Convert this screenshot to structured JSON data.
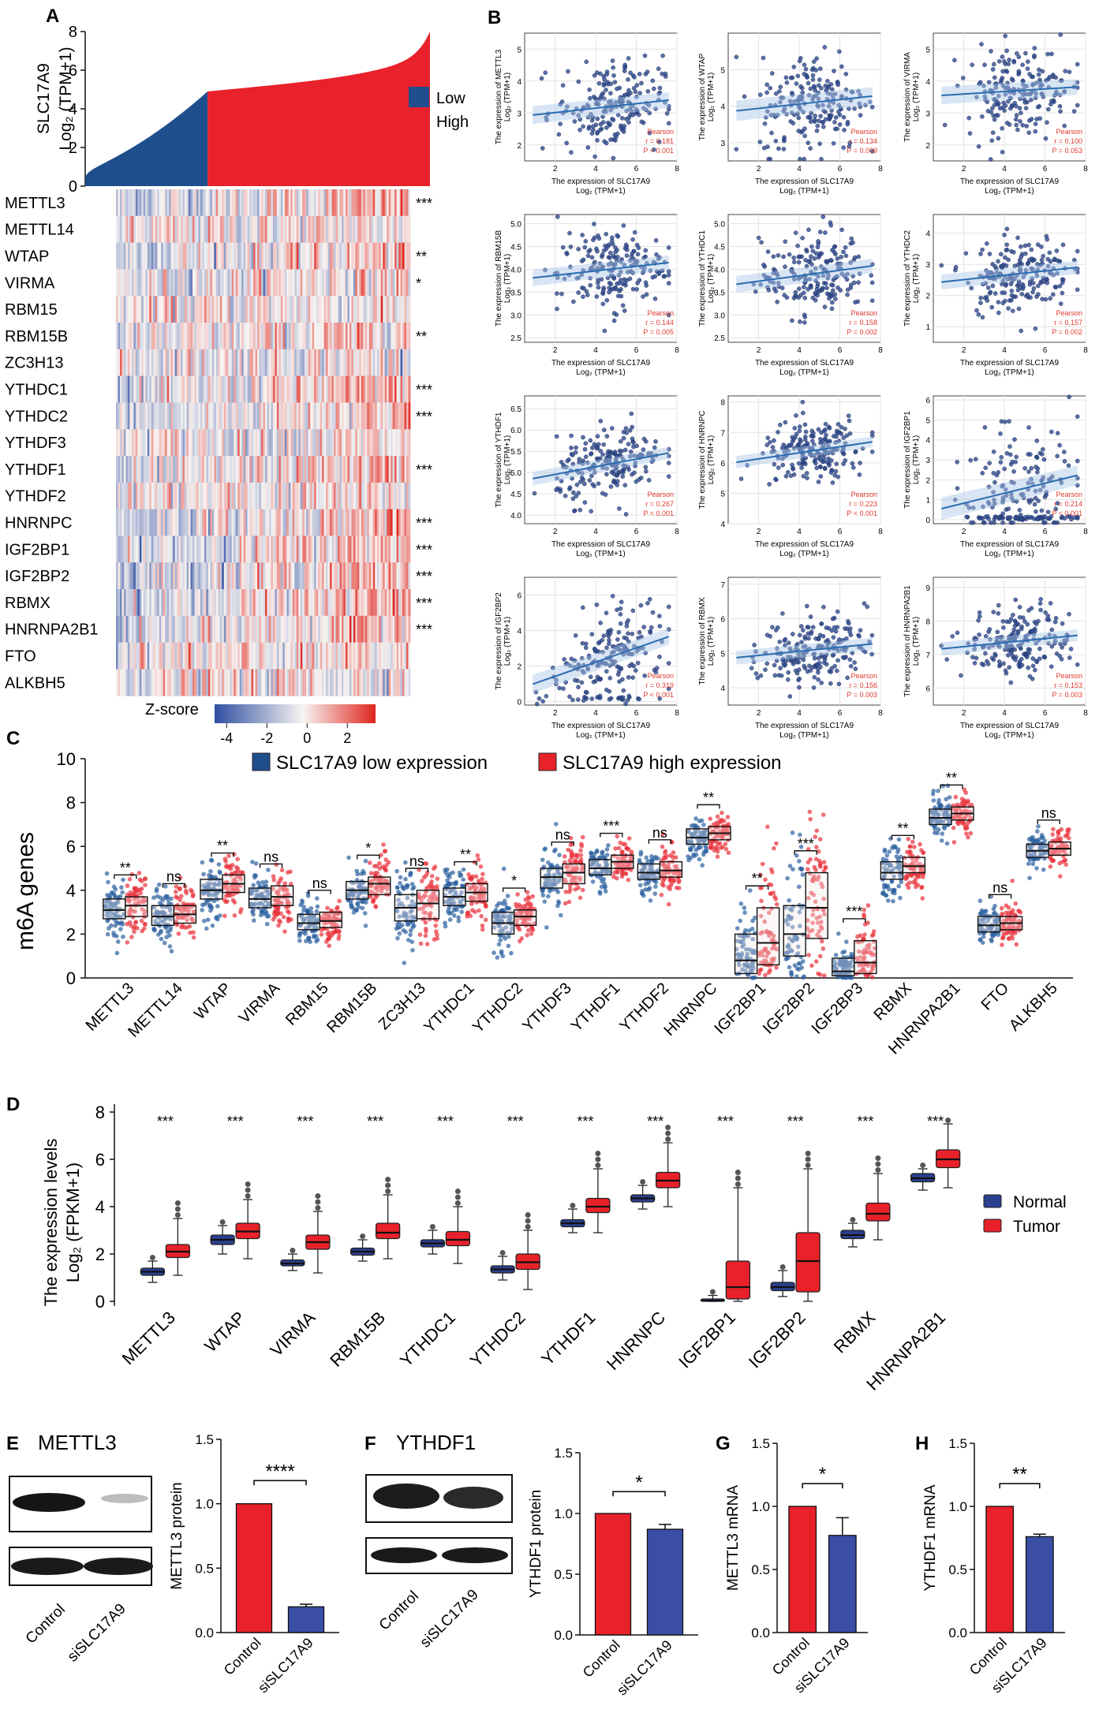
{
  "colors": {
    "low": "#1f4e8c",
    "high": "#e8212a",
    "normal": "#2b3f8f",
    "tumor": "#e8212a",
    "heat_neg": "#2f4fa2",
    "heat_mid": "#f7f4f2",
    "heat_pos": "#e0251d",
    "scatter_point": "#2f4a8f",
    "trend": "#2a6cb0",
    "band": "#a9c6e6",
    "grid": "#e3e3e3",
    "pearson_text": "#e03a2f",
    "bar_ctrl": "#e8212a",
    "bar_si": "#3a4ea6"
  },
  "panels": {
    "A": {
      "label": "A",
      "ylabel_line1": "SLC17A9",
      "ylabel_line2": "Log₂ (TPM+1)",
      "yticks": [
        "0",
        "2",
        "4",
        "6",
        "8"
      ],
      "legend": [
        {
          "name": "Low",
          "color": "#1f4e8c"
        },
        {
          "name": "High",
          "color": "#e8212a"
        }
      ],
      "genes": [
        "METTL3",
        "METTL14",
        "WTAP",
        "VIRMA",
        "RBM15",
        "RBM15B",
        "ZC3H13",
        "YTHDC1",
        "YTHDC2",
        "YTHDF3",
        "YTHDF1",
        "YTHDF2",
        "HNRNPC",
        "IGF2BP1",
        "IGF2BP2",
        "RBMX",
        "HNRNPA2B1",
        "FTO",
        "ALKBH5"
      ],
      "stars": [
        "***",
        "",
        "**",
        "*",
        "",
        "**",
        "",
        "***",
        "***",
        "",
        "***",
        "",
        "***",
        "***",
        "***",
        "***",
        "***",
        "",
        ""
      ],
      "zscore_label": "Z-score",
      "zscore_ticks": [
        "-4",
        "-2",
        "0",
        "2"
      ]
    },
    "B": {
      "label": "B",
      "xlabel_line1": "The expression of SLC17A9",
      "xlabel_line2": "Log₂ (TPM+1)",
      "xticks": [
        "2",
        "4",
        "6",
        "8"
      ],
      "pearson_word": "Pearson",
      "plots": [
        {
          "gene": "METTL3",
          "r": "r = 0.181",
          "p": "P < 0.001",
          "yticks": [
            "2",
            "3",
            "4",
            "5"
          ]
        },
        {
          "gene": "WTAP",
          "r": "r = 0.134",
          "p": "P = 0.009",
          "yticks": [
            "3",
            "4",
            "5"
          ]
        },
        {
          "gene": "VIRMA",
          "r": "r = 0.100",
          "p": "P = 0.053",
          "yticks": [
            "2",
            "3",
            "4",
            "5"
          ]
        },
        {
          "gene": "RBM15B",
          "r": "r = 0.144",
          "p": "P = 0.005",
          "yticks": [
            "2.5",
            "3.0",
            "3.5",
            "4.0",
            "4.5",
            "5.0"
          ]
        },
        {
          "gene": "YTHDC1",
          "r": "r = 0.158",
          "p": "P = 0.002",
          "yticks": [
            "2.5",
            "3.0",
            "3.5",
            "4.0",
            "4.5",
            "5.0"
          ]
        },
        {
          "gene": "YTHDC2",
          "r": "r = 0.157",
          "p": "P = 0.002",
          "yticks": [
            "1",
            "2",
            "3",
            "4"
          ]
        },
        {
          "gene": "YTHDF1",
          "r": "r = 0.267",
          "p": "P < 0.001",
          "yticks": [
            "4.0",
            "4.5",
            "5.0",
            "5.5",
            "6.0",
            "6.5"
          ]
        },
        {
          "gene": "HNRNPC",
          "r": "r = 0.223",
          "p": "P < 0.001",
          "yticks": [
            "4",
            "5",
            "6",
            "7",
            "8"
          ]
        },
        {
          "gene": "IGF2BP1",
          "r": "r = 0.214",
          "p": "P < 0.001",
          "yticks": [
            "0",
            "1",
            "2",
            "3",
            "4",
            "5",
            "6"
          ]
        },
        {
          "gene": "IGF2BP2",
          "r": "r = 0.319",
          "p": "P < 0.001",
          "yticks": [
            "0",
            "2",
            "4",
            "6"
          ]
        },
        {
          "gene": "RBMX",
          "r": "r = 0.156",
          "p": "P = 0.003",
          "yticks": [
            "4",
            "5",
            "6",
            "7"
          ]
        },
        {
          "gene": "HNRNPA2B1",
          "r": "r = 0.153",
          "p": "P = 0.003",
          "yticks": [
            "6",
            "7",
            "8",
            "9"
          ]
        }
      ]
    },
    "C": {
      "label": "C",
      "ylabel": "m6A genes",
      "legend_low": "SLC17A9 low expression",
      "legend_high": "SLC17A9 high expression",
      "yticks": [
        "0",
        "2",
        "4",
        "6",
        "8",
        "10"
      ],
      "genes": [
        "METTL3",
        "METTL14",
        "WTAP",
        "VIRMA",
        "RBM15",
        "RBM15B",
        "ZC3H13",
        "YTHDC1",
        "YTHDC2",
        "YTHDF3",
        "YTHDF1",
        "YTHDF2",
        "HNRNPC",
        "IGF2BP1",
        "IGF2BP2",
        "IGF2BP3",
        "RBMX",
        "HNRNPA2B1",
        "FTO",
        "ALKBH5"
      ],
      "sig": [
        "**",
        "ns",
        "**",
        "ns",
        "ns",
        "*",
        "ns",
        "**",
        "*",
        "ns",
        "***",
        "ns",
        "**",
        "**",
        "***",
        "***",
        "**",
        "**",
        "ns",
        "ns"
      ]
    },
    "D": {
      "label": "D",
      "ylabel_line1": "The expression levels",
      "ylabel_line2": "Log₂ (FPKM+1)",
      "yticks": [
        "0",
        "2",
        "4",
        "6",
        "8"
      ],
      "legend": [
        "Normal",
        "Tumor"
      ],
      "genes": [
        "METTL3",
        "WTAP",
        "VIRMA",
        "RBM15B",
        "YTHDC1",
        "YTHDC2",
        "YTHDF1",
        "HNRNPC",
        "IGF2BP1",
        "IGF2BP2",
        "RBMX",
        "HNRNPA2B1"
      ],
      "sig": [
        "***",
        "***",
        "***",
        "***",
        "***",
        "***",
        "***",
        "***",
        "***",
        "***",
        "***",
        "***"
      ]
    },
    "E": {
      "label": "E",
      "blot_title": "METTL3",
      "lanes": [
        "Control",
        "siSLC17A9"
      ],
      "ylabel": "METTL3 protein",
      "yticks": [
        "0.0",
        "0.5",
        "1.0",
        "1.5"
      ],
      "sig": "****"
    },
    "F": {
      "label": "F",
      "blot_title": "YTHDF1",
      "lanes": [
        "Control",
        "siSLC17A9"
      ],
      "ylabel": "YTHDF1 protein",
      "yticks": [
        "0.0",
        "0.5",
        "1.0",
        "1.5"
      ],
      "sig": "*"
    },
    "G": {
      "label": "G",
      "ylabel": "METTL3 mRNA",
      "lanes": [
        "Control",
        "siSLC17A9"
      ],
      "yticks": [
        "0.0",
        "0.5",
        "1.0",
        "1.5"
      ],
      "sig": "*"
    },
    "H": {
      "label": "H",
      "ylabel": "YTHDF1 mRNA",
      "lanes": [
        "Control",
        "siSLC17A9"
      ],
      "yticks": [
        "0.0",
        "0.5",
        "1.0",
        "1.5"
      ],
      "sig": "**"
    }
  },
  "chart_data": [
    {
      "panel": "A",
      "type": "area",
      "title": "",
      "xlabel": "",
      "ylabel": "SLC17A9 Log2 (TPM+1)",
      "ylim": [
        0,
        8
      ],
      "series": [
        {
          "name": "Low",
          "range": [
            0.3,
            4.9
          ]
        },
        {
          "name": "High",
          "range": [
            4.9,
            7.9
          ]
        }
      ]
    },
    {
      "panel": "A",
      "type": "heatmap",
      "rows": [
        "METTL3",
        "METTL14",
        "WTAP",
        "VIRMA",
        "RBM15",
        "RBM15B",
        "ZC3H13",
        "YTHDC1",
        "YTHDC2",
        "YTHDF3",
        "YTHDF1",
        "YTHDF2",
        "HNRNPC",
        "IGF2BP1",
        "IGF2BP2",
        "RBMX",
        "HNRNPA2B1",
        "FTO",
        "ALKBH5"
      ],
      "zlim": [
        -4,
        3
      ]
    },
    {
      "panel": "B",
      "type": "scatter",
      "x_variable": "SLC17A9 Log2 (TPM+1)",
      "xlim": [
        0.5,
        8
      ],
      "series": [
        {
          "name": "METTL3",
          "ylim": [
            1.5,
            5.5
          ],
          "center": 3.2,
          "spread": 0.7,
          "slope": 0.07,
          "r": 0.181,
          "p": "< 0.001"
        },
        {
          "name": "WTAP",
          "ylim": [
            2.5,
            6
          ],
          "center": 4.1,
          "spread": 0.7,
          "slope": 0.06,
          "r": 0.134,
          "p": "0.009"
        },
        {
          "name": "VIRMA",
          "ylim": [
            1.5,
            5.5
          ],
          "center": 3.7,
          "spread": 0.7,
          "slope": 0.04,
          "r": 0.1,
          "p": "0.053"
        },
        {
          "name": "RBM15B",
          "ylim": [
            2.4,
            5.2
          ],
          "center": 4.0,
          "spread": 0.45,
          "slope": 0.05,
          "r": 0.144,
          "p": "0.005"
        },
        {
          "name": "YTHDC1",
          "ylim": [
            2.4,
            5.2
          ],
          "center": 3.9,
          "spread": 0.45,
          "slope": 0.06,
          "r": 0.158,
          "p": "0.002"
        },
        {
          "name": "YTHDC2",
          "ylim": [
            0.5,
            4.6
          ],
          "center": 2.7,
          "spread": 0.6,
          "slope": 0.07,
          "r": 0.157,
          "p": "0.002"
        },
        {
          "name": "YTHDF1",
          "ylim": [
            3.8,
            6.8
          ],
          "center": 5.2,
          "spread": 0.4,
          "slope": 0.09,
          "r": 0.267,
          "p": "< 0.001"
        },
        {
          "name": "HNRNPC",
          "ylim": [
            4,
            8.2
          ],
          "center": 6.4,
          "spread": 0.5,
          "slope": 0.1,
          "r": 0.223,
          "p": "< 0.001"
        },
        {
          "name": "IGF2BP1",
          "ylim": [
            -0.2,
            6.2
          ],
          "center": 1.5,
          "spread": 1.4,
          "slope": 0.25,
          "r": 0.214,
          "p": "< 0.001"
        },
        {
          "name": "IGF2BP2",
          "ylim": [
            -0.2,
            7
          ],
          "center": 2.5,
          "spread": 1.3,
          "slope": 0.4,
          "r": 0.319,
          "p": "< 0.001"
        },
        {
          "name": "RBMX",
          "ylim": [
            3.5,
            7.2
          ],
          "center": 5.1,
          "spread": 0.5,
          "slope": 0.06,
          "r": 0.156,
          "p": "0.003"
        },
        {
          "name": "HNRNPA2B1",
          "ylim": [
            5.5,
            9.3
          ],
          "center": 7.4,
          "spread": 0.5,
          "slope": 0.06,
          "r": 0.153,
          "p": "0.003"
        }
      ]
    },
    {
      "panel": "C",
      "type": "box",
      "title": "",
      "ylabel": "m6A genes",
      "ylim": [
        0,
        10
      ],
      "categories": [
        "METTL3",
        "METTL14",
        "WTAP",
        "VIRMA",
        "RBM15",
        "RBM15B",
        "ZC3H13",
        "YTHDC1",
        "YTHDC2",
        "YTHDF3",
        "YTHDF1",
        "YTHDF2",
        "HNRNPC",
        "IGF2BP1",
        "IGF2BP2",
        "IGF2BP3",
        "RBMX",
        "HNRNPA2B1",
        "FTO",
        "ALKBH5"
      ],
      "series": [
        {
          "name": "SLC17A9 low expression",
          "median": [
            3.1,
            2.8,
            4.0,
            3.6,
            2.5,
            4.0,
            3.2,
            3.7,
            2.5,
            4.6,
            5.0,
            4.8,
            6.4,
            0.8,
            2.0,
            0.3,
            4.8,
            7.3,
            2.4,
            5.8
          ],
          "q1": [
            2.7,
            2.4,
            3.6,
            3.2,
            2.2,
            3.6,
            2.6,
            3.3,
            2.0,
            4.1,
            4.7,
            4.5,
            6.1,
            0.2,
            1.0,
            0.1,
            4.5,
            7.0,
            2.1,
            5.5
          ],
          "q3": [
            3.6,
            3.3,
            4.5,
            4.1,
            2.9,
            4.4,
            3.8,
            4.1,
            3.0,
            5.0,
            5.4,
            5.2,
            6.8,
            2.0,
            3.3,
            0.9,
            5.3,
            7.7,
            2.8,
            6.1
          ]
        },
        {
          "name": "SLC17A9 high expression",
          "median": [
            3.3,
            2.9,
            4.3,
            3.7,
            2.6,
            4.3,
            3.4,
            3.9,
            2.8,
            4.8,
            5.3,
            4.9,
            6.6,
            1.6,
            3.2,
            0.7,
            5.1,
            7.5,
            2.5,
            5.9
          ],
          "q1": [
            2.8,
            2.5,
            3.9,
            3.3,
            2.3,
            3.8,
            2.7,
            3.5,
            2.4,
            4.3,
            5.0,
            4.6,
            6.3,
            0.6,
            1.8,
            0.2,
            4.8,
            7.2,
            2.2,
            5.6
          ],
          "q3": [
            3.7,
            3.3,
            4.7,
            4.2,
            3.0,
            4.6,
            4.0,
            4.3,
            3.1,
            5.2,
            5.6,
            5.3,
            6.9,
            3.2,
            4.8,
            1.7,
            5.5,
            7.8,
            2.8,
            6.2
          ]
        }
      ]
    },
    {
      "panel": "D",
      "type": "box",
      "title": "",
      "ylabel": "Log2 (FPKM+1)",
      "ylim": [
        0,
        8
      ],
      "categories": [
        "METTL3",
        "WTAP",
        "VIRMA",
        "RBM15B",
        "YTHDC1",
        "YTHDC2",
        "YTHDF1",
        "HNRNPC",
        "IGF2BP1",
        "IGF2BP2",
        "RBMX",
        "HNRNPA2B1"
      ],
      "series": [
        {
          "name": "Normal",
          "median": [
            1.25,
            2.6,
            1.6,
            2.1,
            2.45,
            1.35,
            3.3,
            4.35,
            0.03,
            0.6,
            2.8,
            5.2
          ],
          "q1": [
            1.1,
            2.4,
            1.5,
            1.95,
            2.3,
            1.2,
            3.15,
            4.2,
            0.0,
            0.45,
            2.65,
            5.05
          ],
          "q3": [
            1.4,
            2.8,
            1.75,
            2.25,
            2.6,
            1.5,
            3.45,
            4.5,
            0.1,
            0.8,
            3.0,
            5.4
          ],
          "min": [
            0.8,
            2.0,
            1.3,
            1.7,
            2.0,
            0.9,
            2.9,
            3.9,
            0.0,
            0.2,
            2.3,
            4.7
          ],
          "max": [
            1.7,
            3.2,
            2.0,
            2.6,
            3.0,
            1.9,
            3.9,
            4.9,
            0.25,
            1.3,
            3.3,
            5.6
          ]
        },
        {
          "name": "Tumor",
          "median": [
            2.1,
            2.95,
            2.5,
            2.9,
            2.6,
            1.65,
            4.0,
            5.1,
            0.6,
            1.7,
            3.7,
            6.0
          ],
          "q1": [
            1.85,
            2.65,
            2.2,
            2.65,
            2.35,
            1.35,
            3.75,
            4.8,
            0.1,
            0.4,
            3.4,
            5.65
          ],
          "q3": [
            2.4,
            3.3,
            2.8,
            3.3,
            2.95,
            2.0,
            4.35,
            5.45,
            1.7,
            2.9,
            4.15,
            6.4
          ],
          "min": [
            1.1,
            1.8,
            1.2,
            1.8,
            1.6,
            0.5,
            2.9,
            4.0,
            0.0,
            0.0,
            2.6,
            4.8
          ],
          "max": [
            3.5,
            4.3,
            3.8,
            4.5,
            4.0,
            3.0,
            5.6,
            6.7,
            4.8,
            5.6,
            5.4,
            7.5
          ]
        }
      ]
    },
    {
      "panel": "E",
      "type": "bar",
      "categories": [
        "Control",
        "siSLC17A9"
      ],
      "values": [
        1.0,
        0.2
      ],
      "errors": [
        0,
        0.02
      ],
      "ylabel": "METTL3 protein",
      "ylim": [
        0,
        1.5
      ]
    },
    {
      "panel": "F",
      "type": "bar",
      "categories": [
        "Control",
        "siSLC17A9"
      ],
      "values": [
        1.0,
        0.87
      ],
      "errors": [
        0,
        0.04
      ],
      "ylabel": "YTHDF1 protein",
      "ylim": [
        0,
        1.5
      ]
    },
    {
      "panel": "G",
      "type": "bar",
      "categories": [
        "Control",
        "siSLC17A9"
      ],
      "values": [
        1.0,
        0.77
      ],
      "errors": [
        0,
        0.14
      ],
      "ylabel": "METTL3 mRNA",
      "ylim": [
        0,
        1.5
      ]
    },
    {
      "panel": "H",
      "type": "bar",
      "categories": [
        "Control",
        "siSLC17A9"
      ],
      "values": [
        1.0,
        0.76
      ],
      "errors": [
        0,
        0.02
      ],
      "ylabel": "YTHDF1 mRNA",
      "ylim": [
        0,
        1.5
      ]
    }
  ]
}
